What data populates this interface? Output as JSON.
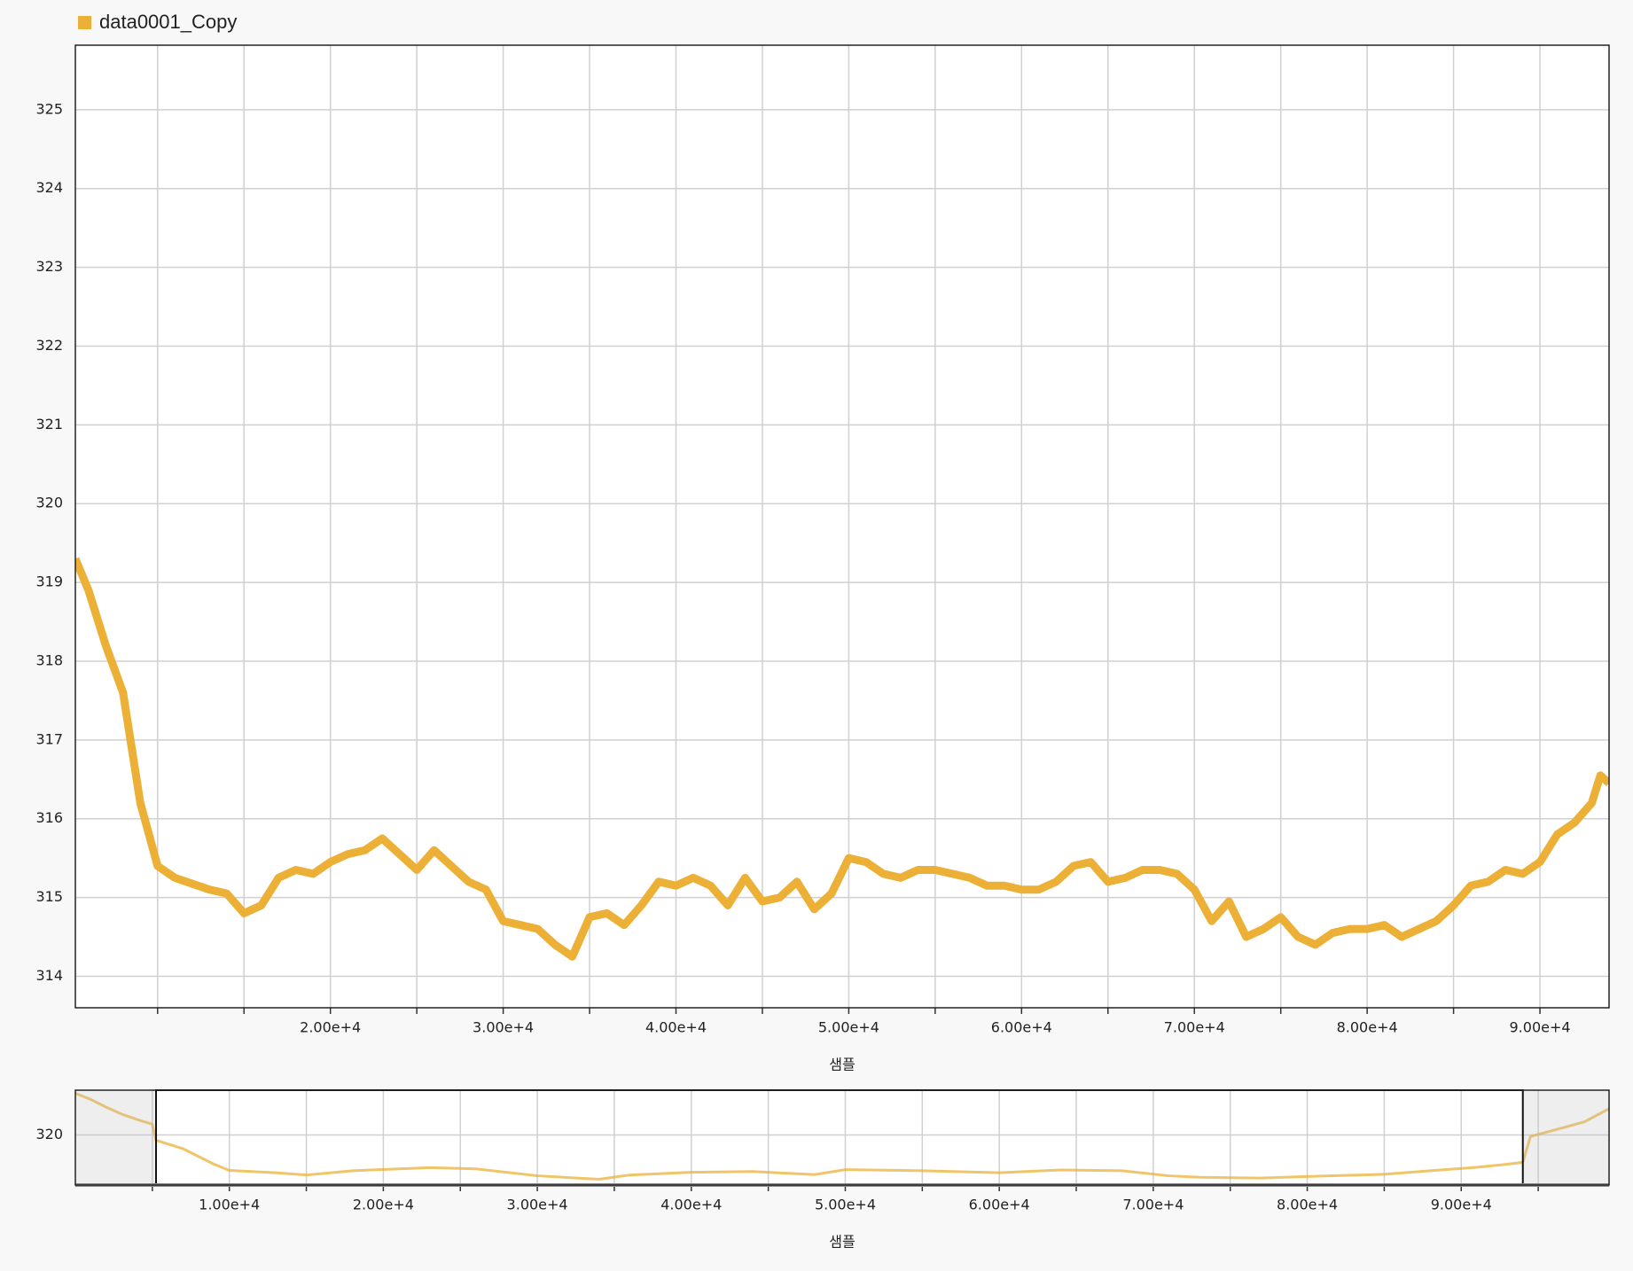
{
  "chart_data": [
    {
      "type": "line",
      "legend": "top-left",
      "grid": true,
      "xlabel": "샘플",
      "xlim": [
        5240,
        94000
      ],
      "ylim": [
        313.6,
        325.82
      ],
      "xticks": [
        {
          "value": 20000,
          "label": "2.00e+4"
        },
        {
          "value": 30000,
          "label": "3.00e+4"
        },
        {
          "value": 40000,
          "label": "4.00e+4"
        },
        {
          "value": 50000,
          "label": "5.00e+4"
        },
        {
          "value": 60000,
          "label": "6.00e+4"
        },
        {
          "value": 70000,
          "label": "7.00e+4"
        },
        {
          "value": 80000,
          "label": "8.00e+4"
        },
        {
          "value": 90000,
          "label": "9.00e+4"
        }
      ],
      "xminorticks": [
        10000,
        15000,
        25000,
        35000,
        45000,
        55000,
        65000,
        75000,
        85000
      ],
      "yticks": [
        314,
        315,
        316,
        317,
        318,
        319,
        320,
        321,
        322,
        323,
        324,
        325
      ],
      "series": [
        {
          "name": "data0001_Copy",
          "color": "#ebb035",
          "x": [
            5240,
            6000,
            7000,
            8000,
            9000,
            10000,
            11000,
            13000,
            14000,
            15000,
            16000,
            17000,
            18000,
            19000,
            20000,
            21000,
            22000,
            23000,
            24000,
            25000,
            26000,
            27000,
            28000,
            29000,
            30000,
            31000,
            32000,
            33000,
            34000,
            35000,
            36000,
            37000,
            38000,
            39000,
            40000,
            41000,
            42000,
            43000,
            44000,
            45000,
            46000,
            47000,
            48000,
            49000,
            50000,
            51000,
            52000,
            53000,
            54000,
            55000,
            56000,
            57000,
            58000,
            59000,
            60000,
            61000,
            62000,
            63000,
            64000,
            65000,
            66000,
            67000,
            68000,
            69000,
            70000,
            71000,
            72000,
            73000,
            74000,
            75000,
            76000,
            77000,
            78000,
            79000,
            80000,
            81000,
            82000,
            83000,
            84000,
            85000,
            86000,
            87000,
            88000,
            89000,
            90000,
            91000,
            92000,
            93000,
            93500,
            94000
          ],
          "values": [
            319.3,
            318.9,
            318.2,
            317.6,
            316.2,
            315.4,
            315.25,
            315.1,
            315.05,
            314.8,
            314.9,
            315.25,
            315.35,
            315.3,
            315.45,
            315.55,
            315.6,
            315.75,
            315.55,
            315.35,
            315.6,
            315.4,
            315.2,
            315.1,
            314.7,
            314.65,
            314.6,
            314.4,
            314.25,
            314.75,
            314.8,
            314.65,
            314.9,
            315.2,
            315.15,
            315.25,
            315.15,
            314.9,
            315.25,
            314.95,
            315.0,
            315.2,
            314.85,
            315.05,
            315.5,
            315.45,
            315.3,
            315.25,
            315.35,
            315.35,
            315.3,
            315.25,
            315.15,
            315.15,
            315.1,
            315.1,
            315.2,
            315.4,
            315.45,
            315.2,
            315.25,
            315.35,
            315.35,
            315.3,
            315.1,
            314.7,
            314.95,
            314.5,
            314.6,
            314.75,
            314.5,
            314.4,
            314.55,
            314.6,
            314.6,
            314.65,
            314.5,
            314.6,
            314.7,
            314.9,
            315.15,
            315.2,
            315.35,
            315.3,
            315.45,
            315.8,
            315.95,
            316.2,
            316.55,
            316.45
          ]
        }
      ]
    },
    {
      "type": "line",
      "grid": true,
      "xlabel": "샘플",
      "xlim": [
        0,
        99600
      ],
      "ylim": [
        313.5,
        325.8
      ],
      "xticks": [
        {
          "value": 10000,
          "label": "1.00e+4"
        },
        {
          "value": 20000,
          "label": "2.00e+4"
        },
        {
          "value": 30000,
          "label": "3.00e+4"
        },
        {
          "value": 40000,
          "label": "4.00e+4"
        },
        {
          "value": 50000,
          "label": "5.00e+4"
        },
        {
          "value": 60000,
          "label": "6.00e+4"
        },
        {
          "value": 70000,
          "label": "7.00e+4"
        },
        {
          "value": 80000,
          "label": "8.00e+4"
        },
        {
          "value": 90000,
          "label": "9.00e+4"
        }
      ],
      "xminorticks": [
        5000,
        15000,
        25000,
        35000,
        45000,
        55000,
        65000,
        75000,
        85000,
        95000
      ],
      "yticks": [
        320
      ],
      "series": [
        {
          "color": "#ebb035",
          "x": [
            0,
            1000,
            2000,
            3000,
            4000,
            5000,
            5240,
            7000,
            9000,
            10000,
            13000,
            15000,
            18000,
            23000,
            26000,
            30000,
            34000,
            36000,
            40000,
            44000,
            48000,
            50000,
            55000,
            60000,
            64000,
            68000,
            71000,
            73000,
            77000,
            80000,
            85000,
            88000,
            91000,
            93000,
            94000,
            94500,
            96000,
            98000,
            99600
          ],
          "values": [
            325.4,
            324.6,
            323.6,
            322.7,
            322.0,
            321.4,
            319.3,
            318.2,
            316.2,
            315.4,
            315.1,
            314.8,
            315.35,
            315.75,
            315.6,
            314.7,
            314.25,
            314.8,
            315.15,
            315.25,
            314.85,
            315.5,
            315.35,
            315.1,
            315.45,
            315.35,
            314.7,
            314.5,
            314.4,
            314.6,
            314.9,
            315.35,
            315.8,
            316.2,
            316.45,
            319.8,
            320.6,
            321.7,
            323.4
          ]
        }
      ]
    }
  ]
}
